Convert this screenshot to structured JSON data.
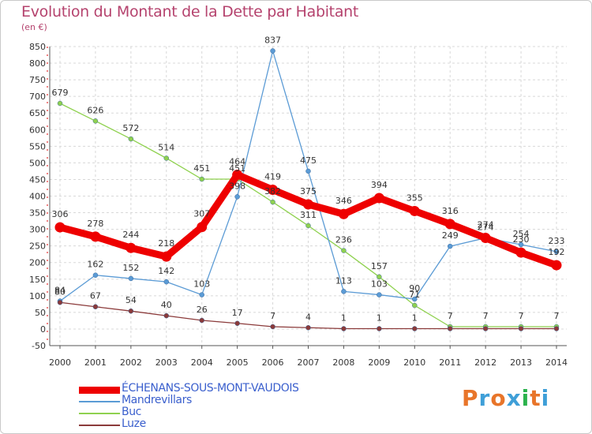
{
  "header": {
    "title": "Evolution du Montant de la Dette par Habitant",
    "subtitle": "(en €)"
  },
  "logo": {
    "text": "Proxiti",
    "colors": [
      "#e8752a",
      "#3f9fd8",
      "#e8752a",
      "#3f9fd8",
      "#2bb24c",
      "#e8752a",
      "#3f9fd8"
    ]
  },
  "chart_data": {
    "type": "line",
    "title": "Evolution du Montant de la Dette par Habitant",
    "subtitle": "(en €)",
    "xlabel": "",
    "ylabel": "",
    "x": [
      2000,
      2001,
      2002,
      2003,
      2004,
      2005,
      2006,
      2007,
      2008,
      2009,
      2010,
      2011,
      2012,
      2013,
      2014
    ],
    "ylim": [
      -50,
      850
    ],
    "yticks": [
      -50,
      0,
      50,
      100,
      150,
      200,
      250,
      300,
      350,
      400,
      450,
      500,
      550,
      600,
      650,
      700,
      750,
      800,
      850
    ],
    "grid": true,
    "legend_position": "bottom-left",
    "series": [
      {
        "name": "ÉCHENANS-SOUS-MONT-VAUDOIS",
        "color": "#ee0000",
        "values": [
          306,
          278,
          244,
          218,
          307,
          464,
          419,
          375,
          346,
          394,
          355,
          316,
          274,
          230,
          192
        ],
        "labels": [
          "306",
          "278",
          "244",
          "218",
          "307",
          "464",
          "419",
          "375",
          "346",
          "394",
          "355",
          "316",
          "274",
          "230",
          "192"
        ]
      },
      {
        "name": "Mandrevillars",
        "color": "#5b9bd5",
        "values": [
          84,
          162,
          152,
          142,
          103,
          398,
          837,
          475,
          113,
          103,
          90,
          249,
          274,
          254,
          233
        ],
        "labels": [
          "84",
          "162",
          "152",
          "142",
          "103",
          "398",
          "837",
          "475",
          "113",
          "103",
          "90",
          "249",
          "274",
          "254",
          "233"
        ]
      },
      {
        "name": "Buc",
        "color": "#8fd14f",
        "values": [
          679,
          626,
          572,
          514,
          451,
          451,
          382,
          311,
          236,
          157,
          71,
          7,
          7,
          7,
          7
        ],
        "labels": [
          "679",
          "626",
          "572",
          "514",
          "451",
          "451",
          "382",
          "311",
          "236",
          "157",
          "71",
          "7",
          "7",
          "7",
          "7"
        ]
      },
      {
        "name": "Luze",
        "color": "#8b3a3a",
        "values": [
          80,
          67,
          54,
          40,
          26,
          17,
          7,
          4,
          1,
          1,
          1,
          1,
          1,
          1,
          1
        ],
        "labels": [
          "80",
          "67",
          "54",
          "40",
          "26",
          "17",
          "7",
          "4",
          "1",
          "1",
          "1",
          "",
          "",
          "",
          ""
        ]
      }
    ]
  }
}
